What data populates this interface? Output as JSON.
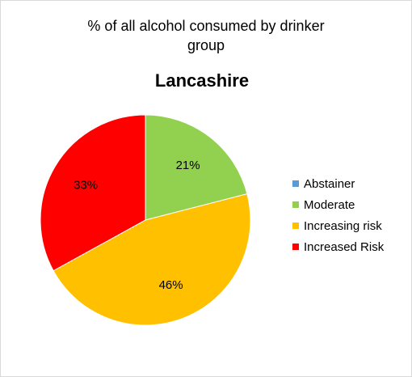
{
  "chart_data": {
    "type": "pie",
    "title": "% of all alcohol consumed  by drinker\ngroup",
    "subtitle": "Lancashire",
    "categories": [
      "Abstainer",
      "Moderate",
      "Increasing risk",
      "Increased Risk"
    ],
    "values": [
      0,
      21,
      46,
      33
    ],
    "data_labels": [
      "",
      "21%",
      "46%",
      "33%"
    ],
    "colors": [
      "#5b9bd5",
      "#92d050",
      "#ffc000",
      "#ff0000"
    ],
    "legend_position": "right"
  }
}
